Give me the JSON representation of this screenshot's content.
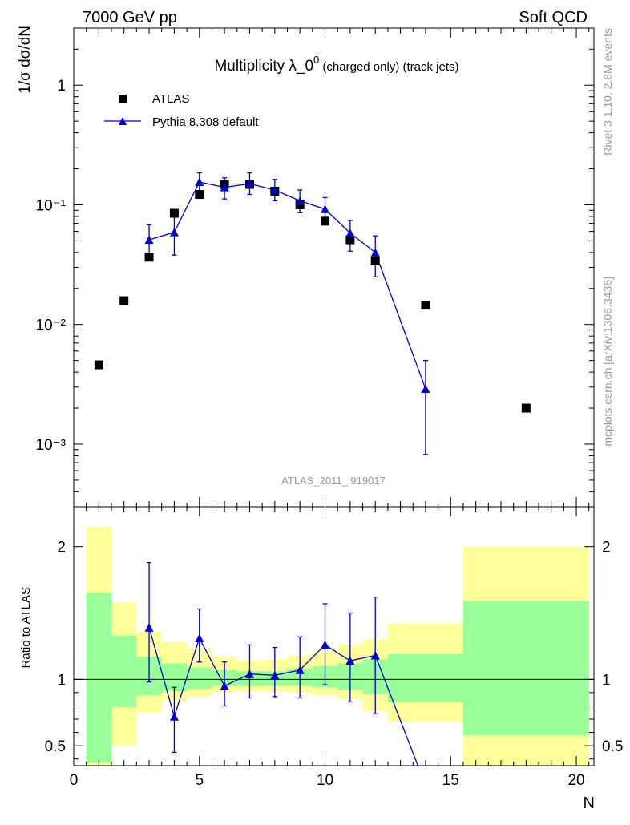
{
  "header": {
    "left": "7000 GeV pp",
    "right": "Soft QCD"
  },
  "side_labels": {
    "rivet": "Rivet 3.1.10,  2.8M events",
    "mcplots": "mcplots.cern.ch [arXiv:1306.3436]"
  },
  "chart_data": [
    {
      "type": "scatter",
      "title_main": "Multiplicity λ_0",
      "title_sup": "0",
      "title_rest": " (charged only) (track jets)",
      "ylabel": "1/σ dσ/dN",
      "analysis_label": "ATLAS_2011_I919017",
      "yscale": "log",
      "xlim": [
        0,
        20.7
      ],
      "ylim": [
        0.0003,
        3.0
      ],
      "y_ticks": [
        {
          "value": 1,
          "label": "1"
        },
        {
          "value": 0.1,
          "label": "10⁻¹"
        },
        {
          "value": 0.01,
          "label": "10⁻²"
        },
        {
          "value": 0.001,
          "label": "10⁻³"
        }
      ],
      "legend": [
        "ATLAS",
        "Pythia 8.308 default"
      ],
      "series": [
        {
          "name": "ATLAS",
          "marker": "square",
          "color": "#000000",
          "points": [
            {
              "x": 1,
              "y": 0.0046
            },
            {
              "x": 2,
              "y": 0.0158
            },
            {
              "x": 3,
              "y": 0.0365
            },
            {
              "x": 4,
              "y": 0.085
            },
            {
              "x": 5,
              "y": 0.122
            },
            {
              "x": 6,
              "y": 0.148
            },
            {
              "x": 7,
              "y": 0.148
            },
            {
              "x": 8,
              "y": 0.13
            },
            {
              "x": 9,
              "y": 0.1
            },
            {
              "x": 10,
              "y": 0.073
            },
            {
              "x": 11,
              "y": 0.051
            },
            {
              "x": 12,
              "y": 0.034
            },
            {
              "x": 14,
              "y": 0.0145
            },
            {
              "x": 18,
              "y": 0.002
            }
          ]
        },
        {
          "name": "Pythia 8.308 default",
          "marker": "triangle",
          "color": "#0000cc",
          "points": [
            {
              "x": 3,
              "y": 0.051,
              "lo": 0.037,
              "hi": 0.068
            },
            {
              "x": 4,
              "y": 0.059,
              "lo": 0.038,
              "hi": 0.08
            },
            {
              "x": 5,
              "y": 0.155,
              "lo": 0.13,
              "hi": 0.185
            },
            {
              "x": 6,
              "y": 0.14,
              "lo": 0.112,
              "hi": 0.168
            },
            {
              "x": 7,
              "y": 0.15,
              "lo": 0.122,
              "hi": 0.185
            },
            {
              "x": 8,
              "y": 0.133,
              "lo": 0.108,
              "hi": 0.163
            },
            {
              "x": 9,
              "y": 0.108,
              "lo": 0.086,
              "hi": 0.133
            },
            {
              "x": 10,
              "y": 0.092,
              "lo": 0.07,
              "hi": 0.115
            },
            {
              "x": 11,
              "y": 0.058,
              "lo": 0.041,
              "hi": 0.074
            },
            {
              "x": 12,
              "y": 0.04,
              "lo": 0.025,
              "hi": 0.055
            },
            {
              "x": 14,
              "y": 0.0029,
              "lo": 0.00082,
              "hi": 0.005
            }
          ]
        }
      ]
    },
    {
      "type": "line",
      "ylabel": "Ratio to ATLAS",
      "xlabel": "N",
      "xlim": [
        0,
        20.7
      ],
      "ylim": [
        0.35,
        2.3
      ],
      "y_ticks": [
        {
          "value": 0.5,
          "label": "0.5"
        },
        {
          "value": 1,
          "label": "1"
        },
        {
          "value": 2,
          "label": "2"
        }
      ],
      "x_ticks": [
        {
          "value": 0,
          "label": "0"
        },
        {
          "value": 5,
          "label": "5"
        },
        {
          "value": 10,
          "label": "10"
        },
        {
          "value": 15,
          "label": "15"
        },
        {
          "value": 20,
          "label": "20"
        }
      ],
      "reference": 1,
      "bands": [
        {
          "x0": 0.5,
          "x1": 1.5,
          "yellow": [
            0.35,
            2.15
          ],
          "green": [
            0.37,
            1.65
          ]
        },
        {
          "x0": 1.5,
          "x1": 2.5,
          "yellow": [
            0.5,
            1.58
          ],
          "green": [
            0.79,
            1.33
          ]
        },
        {
          "x0": 2.5,
          "x1": 3.5,
          "yellow": [
            0.75,
            1.36
          ],
          "green": [
            0.88,
            1.17
          ]
        },
        {
          "x0": 3.5,
          "x1": 4.5,
          "yellow": [
            0.84,
            1.28
          ],
          "green": [
            0.91,
            1.12
          ]
        },
        {
          "x0": 4.5,
          "x1": 5.5,
          "yellow": [
            0.87,
            1.23
          ],
          "green": [
            0.93,
            1.09
          ]
        },
        {
          "x0": 5.5,
          "x1": 6.5,
          "yellow": [
            0.9,
            1.17
          ],
          "green": [
            0.95,
            1.07
          ]
        },
        {
          "x0": 6.5,
          "x1": 7.5,
          "yellow": [
            0.91,
            1.14
          ],
          "green": [
            0.95,
            1.06
          ]
        },
        {
          "x0": 7.5,
          "x1": 8.5,
          "yellow": [
            0.91,
            1.15
          ],
          "green": [
            0.95,
            1.06
          ]
        },
        {
          "x0": 8.5,
          "x1": 9.5,
          "yellow": [
            0.9,
            1.18
          ],
          "green": [
            0.95,
            1.08
          ]
        },
        {
          "x0": 9.5,
          "x1": 10.5,
          "yellow": [
            0.88,
            1.21
          ],
          "green": [
            0.94,
            1.1
          ]
        },
        {
          "x0": 10.5,
          "x1": 11.5,
          "yellow": [
            0.85,
            1.26
          ],
          "green": [
            0.92,
            1.12
          ]
        },
        {
          "x0": 11.5,
          "x1": 12.5,
          "yellow": [
            0.76,
            1.3
          ],
          "green": [
            0.89,
            1.15
          ]
        },
        {
          "x0": 12.5,
          "x1": 15.5,
          "yellow": [
            0.68,
            1.42
          ],
          "green": [
            0.83,
            1.19
          ]
        },
        {
          "x0": 15.5,
          "x1": 20.5,
          "yellow": [
            0.35,
            2.0
          ],
          "green": [
            0.58,
            1.59
          ]
        }
      ],
      "series": [
        {
          "name": "Pythia 8.308 default",
          "color": "#0000cc",
          "points": [
            {
              "x": 3,
              "y": 1.39,
              "lo": 0.98,
              "hi": 1.88
            },
            {
              "x": 4,
              "y": 0.72,
              "lo": 0.45,
              "hi": 0.94
            },
            {
              "x": 5,
              "y": 1.31,
              "lo": 1.13,
              "hi": 1.53
            },
            {
              "x": 6,
              "y": 0.95,
              "lo": 0.8,
              "hi": 1.13
            },
            {
              "x": 7,
              "y": 1.04,
              "lo": 0.86,
              "hi": 1.26
            },
            {
              "x": 8,
              "y": 1.03,
              "lo": 0.87,
              "hi": 1.24
            },
            {
              "x": 9,
              "y": 1.07,
              "lo": 0.86,
              "hi": 1.32
            },
            {
              "x": 10,
              "y": 1.26,
              "lo": 0.96,
              "hi": 1.57
            },
            {
              "x": 11,
              "y": 1.14,
              "lo": 0.83,
              "hi": 1.5
            },
            {
              "x": 12,
              "y": 1.18,
              "lo": 0.74,
              "hi": 1.62
            },
            {
              "x": 14,
              "y": 0.2
            }
          ]
        }
      ]
    }
  ]
}
